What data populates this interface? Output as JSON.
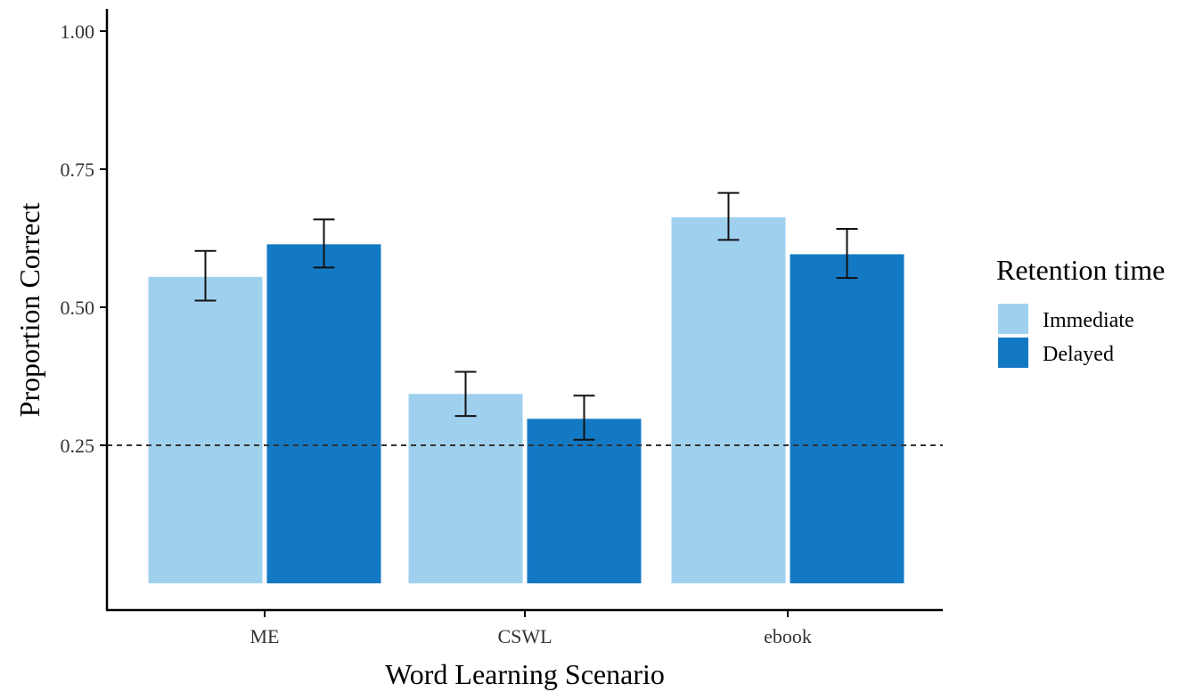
{
  "chart_data": {
    "type": "bar",
    "title": "",
    "xlabel": "Word Learning Scenario",
    "ylabel": "Proportion Correct",
    "ylim": [
      0,
      1.05
    ],
    "yticks": [
      0.25,
      0.5,
      0.75,
      1.0
    ],
    "ytick_labels": [
      "0.25",
      "0.50",
      "0.75",
      "1.00"
    ],
    "categories": [
      "ME",
      "CSWL",
      "ebook"
    ],
    "series": [
      {
        "name": "Immediate",
        "color": "#9fd1ef",
        "values": [
          0.555,
          0.343,
          0.663
        ],
        "error_low": [
          0.512,
          0.303,
          0.622
        ],
        "error_high": [
          0.602,
          0.383,
          0.707
        ]
      },
      {
        "name": "Delayed",
        "color": "#1479c4",
        "values": [
          0.614,
          0.298,
          0.596
        ],
        "error_low": [
          0.572,
          0.26,
          0.553
        ],
        "error_high": [
          0.659,
          0.34,
          0.642
        ]
      }
    ],
    "reference_line": {
      "y": 0.25,
      "style": "dashed"
    },
    "grid": false,
    "legend": {
      "title": "Retention time",
      "position": "right"
    }
  }
}
